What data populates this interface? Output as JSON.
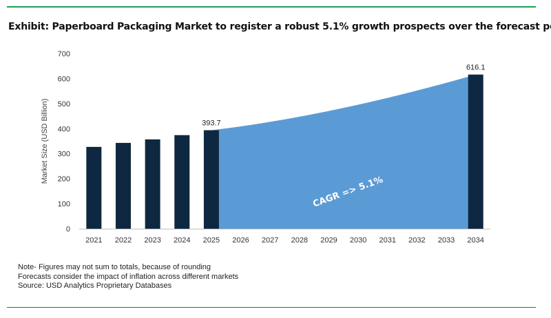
{
  "header": {
    "title": "Exhibit: Paperboard Packaging Market to register a robust 5.1% growth prospects over the forecast period"
  },
  "notes": [
    "Note- Figures may not sum to totals, because of rounding",
    "Forecasts consider the impact of inflation across different markets",
    "Source: USD Analytics Proprietary Databases"
  ],
  "chart_data": {
    "type": "bar",
    "categories": [
      "2021",
      "2022",
      "2023",
      "2024",
      "2025",
      "2026",
      "2027",
      "2028",
      "2029",
      "2030",
      "2031",
      "2032",
      "2033",
      "2034"
    ],
    "values": [
      327,
      343,
      357,
      374,
      393.7,
      null,
      null,
      null,
      null,
      null,
      null,
      null,
      null,
      616.1
    ],
    "data_labels": {
      "2025": "393.7",
      "2034": "616.1"
    },
    "area": {
      "start_category": "2025",
      "end_category": "2034",
      "start_value": 393.7,
      "end_value": 616.1,
      "label": "CAGR => 5.1%",
      "color": "#5b9bd5"
    },
    "bar_color": "#0e2841",
    "ylabel": "Market Size (USD Billion)",
    "xlabel": "",
    "ylim": [
      0,
      700
    ],
    "yticks": [
      0,
      100,
      200,
      300,
      400,
      500,
      600,
      700
    ],
    "grid": false,
    "legend": "none"
  }
}
